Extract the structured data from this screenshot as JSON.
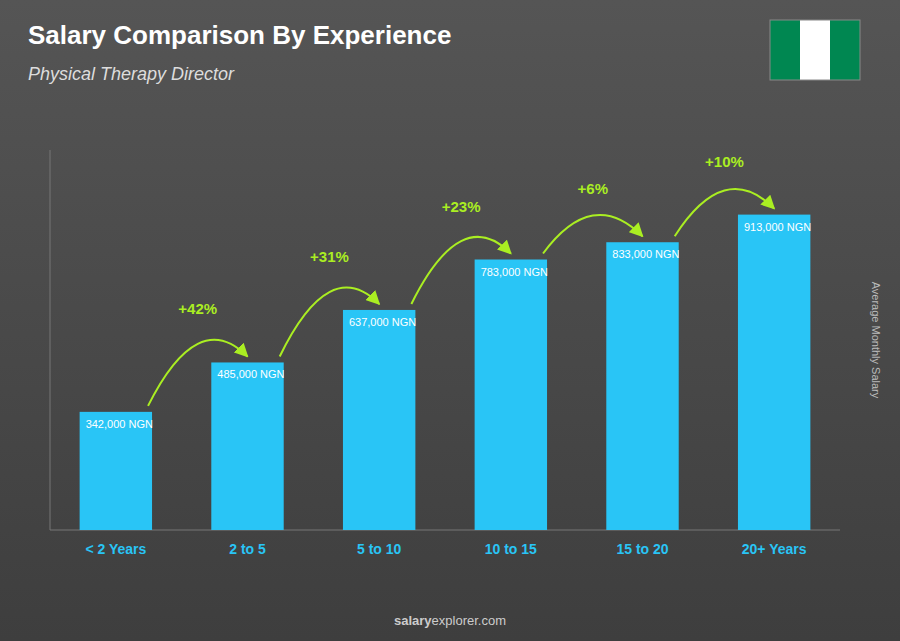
{
  "chart_data": {
    "type": "bar",
    "title": "Salary Comparison By Experience",
    "subtitle": "Physical Therapy Director",
    "y_label": "Average Monthly Salary",
    "categories": [
      "< 2 Years",
      "2 to 5",
      "5 to 10",
      "10 to 15",
      "15 to 20",
      "20+ Years"
    ],
    "values": [
      342000,
      485000,
      637000,
      783000,
      833000,
      913000
    ],
    "value_labels": [
      "342,000 NGN",
      "485,000 NGN",
      "637,000 NGN",
      "783,000 NGN",
      "833,000 NGN",
      "913,000 NGN"
    ],
    "data_labels": true,
    "annotations": [
      "+42%",
      "+31%",
      "+23%",
      "+6%",
      "+10%"
    ],
    "footer": [
      "salary",
      "explorer.com"
    ],
    "color": "#29C5F6",
    "ylim": [
      0,
      1100000
    ],
    "tick_labels": "x",
    "grid": false
  }
}
